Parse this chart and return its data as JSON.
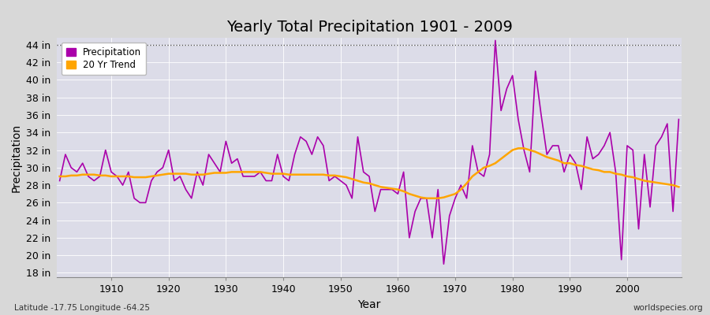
{
  "title": "Yearly Total Precipitation 1901 - 2009",
  "xlabel": "Year",
  "ylabel": "Precipitation",
  "bottom_left": "Latitude -17.75 Longitude -64.25",
  "bottom_right": "worldspecies.org",
  "years": [
    1901,
    1902,
    1903,
    1904,
    1905,
    1906,
    1907,
    1908,
    1909,
    1910,
    1911,
    1912,
    1913,
    1914,
    1915,
    1916,
    1917,
    1918,
    1919,
    1920,
    1921,
    1922,
    1923,
    1924,
    1925,
    1926,
    1927,
    1928,
    1929,
    1930,
    1931,
    1932,
    1933,
    1934,
    1935,
    1936,
    1937,
    1938,
    1939,
    1940,
    1941,
    1942,
    1943,
    1944,
    1945,
    1946,
    1947,
    1948,
    1949,
    1950,
    1951,
    1952,
    1953,
    1954,
    1955,
    1956,
    1957,
    1958,
    1959,
    1960,
    1961,
    1962,
    1963,
    1964,
    1965,
    1966,
    1967,
    1968,
    1969,
    1970,
    1971,
    1972,
    1973,
    1974,
    1975,
    1976,
    1977,
    1978,
    1979,
    1980,
    1981,
    1982,
    1983,
    1984,
    1985,
    1986,
    1987,
    1988,
    1989,
    1990,
    1991,
    1992,
    1993,
    1994,
    1995,
    1996,
    1997,
    1998,
    1999,
    2000,
    2001,
    2002,
    2003,
    2004,
    2005,
    2006,
    2007,
    2008,
    2009
  ],
  "precip": [
    28.5,
    31.5,
    30.0,
    29.5,
    30.5,
    29.0,
    28.5,
    29.0,
    32.0,
    29.5,
    29.0,
    28.0,
    29.5,
    26.5,
    26.0,
    26.0,
    28.5,
    29.5,
    30.0,
    32.0,
    28.5,
    29.0,
    27.5,
    26.5,
    29.5,
    28.0,
    31.5,
    30.5,
    29.5,
    33.0,
    30.5,
    31.0,
    29.0,
    29.0,
    29.0,
    29.5,
    28.5,
    28.5,
    31.5,
    29.0,
    28.5,
    31.5,
    33.5,
    33.0,
    31.5,
    33.5,
    32.5,
    28.5,
    29.0,
    28.5,
    28.0,
    26.5,
    33.5,
    29.5,
    29.0,
    25.0,
    27.5,
    27.5,
    27.5,
    27.0,
    29.5,
    22.0,
    25.0,
    26.5,
    26.5,
    22.0,
    27.5,
    19.0,
    24.5,
    26.5,
    28.0,
    26.5,
    32.5,
    29.5,
    29.0,
    31.5,
    44.5,
    36.5,
    39.0,
    40.5,
    35.5,
    32.0,
    29.5,
    41.0,
    36.0,
    31.5,
    32.5,
    32.5,
    29.5,
    31.5,
    30.5,
    27.5,
    33.5,
    31.0,
    31.5,
    32.5,
    34.0,
    29.5,
    19.5,
    32.5,
    32.0,
    23.0,
    31.5,
    25.5,
    32.5,
    33.5,
    35.0,
    25.0,
    35.5
  ],
  "trend": [
    29.0,
    29.0,
    29.1,
    29.1,
    29.2,
    29.2,
    29.2,
    29.1,
    29.1,
    29.0,
    29.0,
    29.0,
    29.0,
    28.9,
    28.9,
    28.9,
    29.0,
    29.1,
    29.2,
    29.3,
    29.3,
    29.3,
    29.3,
    29.2,
    29.2,
    29.2,
    29.3,
    29.4,
    29.4,
    29.4,
    29.5,
    29.5,
    29.5,
    29.5,
    29.5,
    29.5,
    29.4,
    29.3,
    29.3,
    29.3,
    29.2,
    29.2,
    29.2,
    29.2,
    29.2,
    29.2,
    29.2,
    29.1,
    29.1,
    29.0,
    28.9,
    28.7,
    28.5,
    28.3,
    28.2,
    28.0,
    27.8,
    27.7,
    27.6,
    27.5,
    27.3,
    27.0,
    26.8,
    26.6,
    26.5,
    26.5,
    26.5,
    26.6,
    26.8,
    27.0,
    27.5,
    28.2,
    29.0,
    29.5,
    30.0,
    30.2,
    30.5,
    31.0,
    31.5,
    32.0,
    32.2,
    32.2,
    32.0,
    31.8,
    31.5,
    31.2,
    31.0,
    30.8,
    30.5,
    30.5,
    30.3,
    30.2,
    30.0,
    29.8,
    29.7,
    29.5,
    29.5,
    29.3,
    29.2,
    29.0,
    28.9,
    28.7,
    28.5,
    28.4,
    28.3,
    28.2,
    28.1,
    28.0,
    27.8
  ],
  "precip_color": "#AA00AA",
  "trend_color": "#FFA500",
  "fig_bg_color": "#D8D8D8",
  "plot_bg_color": "#DCDCE8",
  "ytick_labels": [
    "18 in",
    "20 in",
    "22 in",
    "24 in",
    "26 in",
    "28 in",
    "30 in",
    "32 in",
    "34 in",
    "36 in",
    "38 in",
    "40 in",
    "42 in",
    "44 in"
  ],
  "ytick_values": [
    18,
    20,
    22,
    24,
    26,
    28,
    30,
    32,
    34,
    36,
    38,
    40,
    42,
    44
  ],
  "ylim": [
    17.5,
    44.8
  ],
  "xlim": [
    1900.5,
    2009.5
  ],
  "xtick_values": [
    1910,
    1920,
    1930,
    1940,
    1950,
    1960,
    1970,
    1980,
    1990,
    2000
  ],
  "hline_y": 44,
  "hline_color": "#555555",
  "title_fontsize": 14,
  "axis_label_fontsize": 10,
  "tick_fontsize": 9
}
